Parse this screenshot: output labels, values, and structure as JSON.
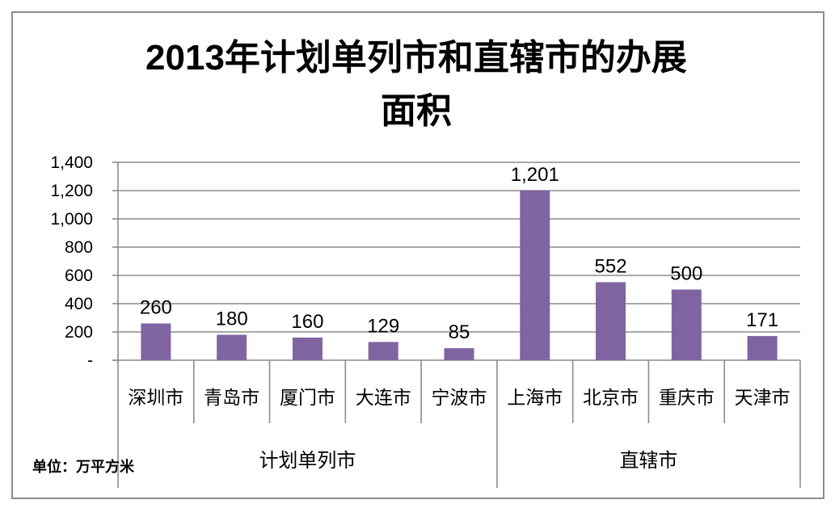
{
  "chart_data": {
    "type": "bar",
    "title_line1": "2013年计划单列市和直辖市的办展",
    "title_line2": "面积",
    "unit_note": "单位：万平方米",
    "categories": [
      "深圳市",
      "青岛市",
      "厦门市",
      "大连市",
      "宁波市",
      "上海市",
      "北京市",
      "重庆市",
      "天津市"
    ],
    "values": [
      260,
      180,
      160,
      129,
      85,
      1201,
      552,
      500,
      171
    ],
    "value_labels": [
      "260",
      "180",
      "160",
      "129",
      "85",
      "1,201",
      "552",
      "500",
      "171"
    ],
    "groups": [
      {
        "label": "计划单列市",
        "count": 5
      },
      {
        "label": "直辖市",
        "count": 4
      }
    ],
    "yticks": [
      0,
      200,
      400,
      600,
      800,
      1000,
      1200,
      1400
    ],
    "ytick_labels": [
      "-",
      "200",
      "400",
      "600",
      "800",
      "1,000",
      "1,200",
      "1,400"
    ],
    "ylim": [
      0,
      1400
    ],
    "grid": true,
    "bar_color": "#8064a2"
  }
}
